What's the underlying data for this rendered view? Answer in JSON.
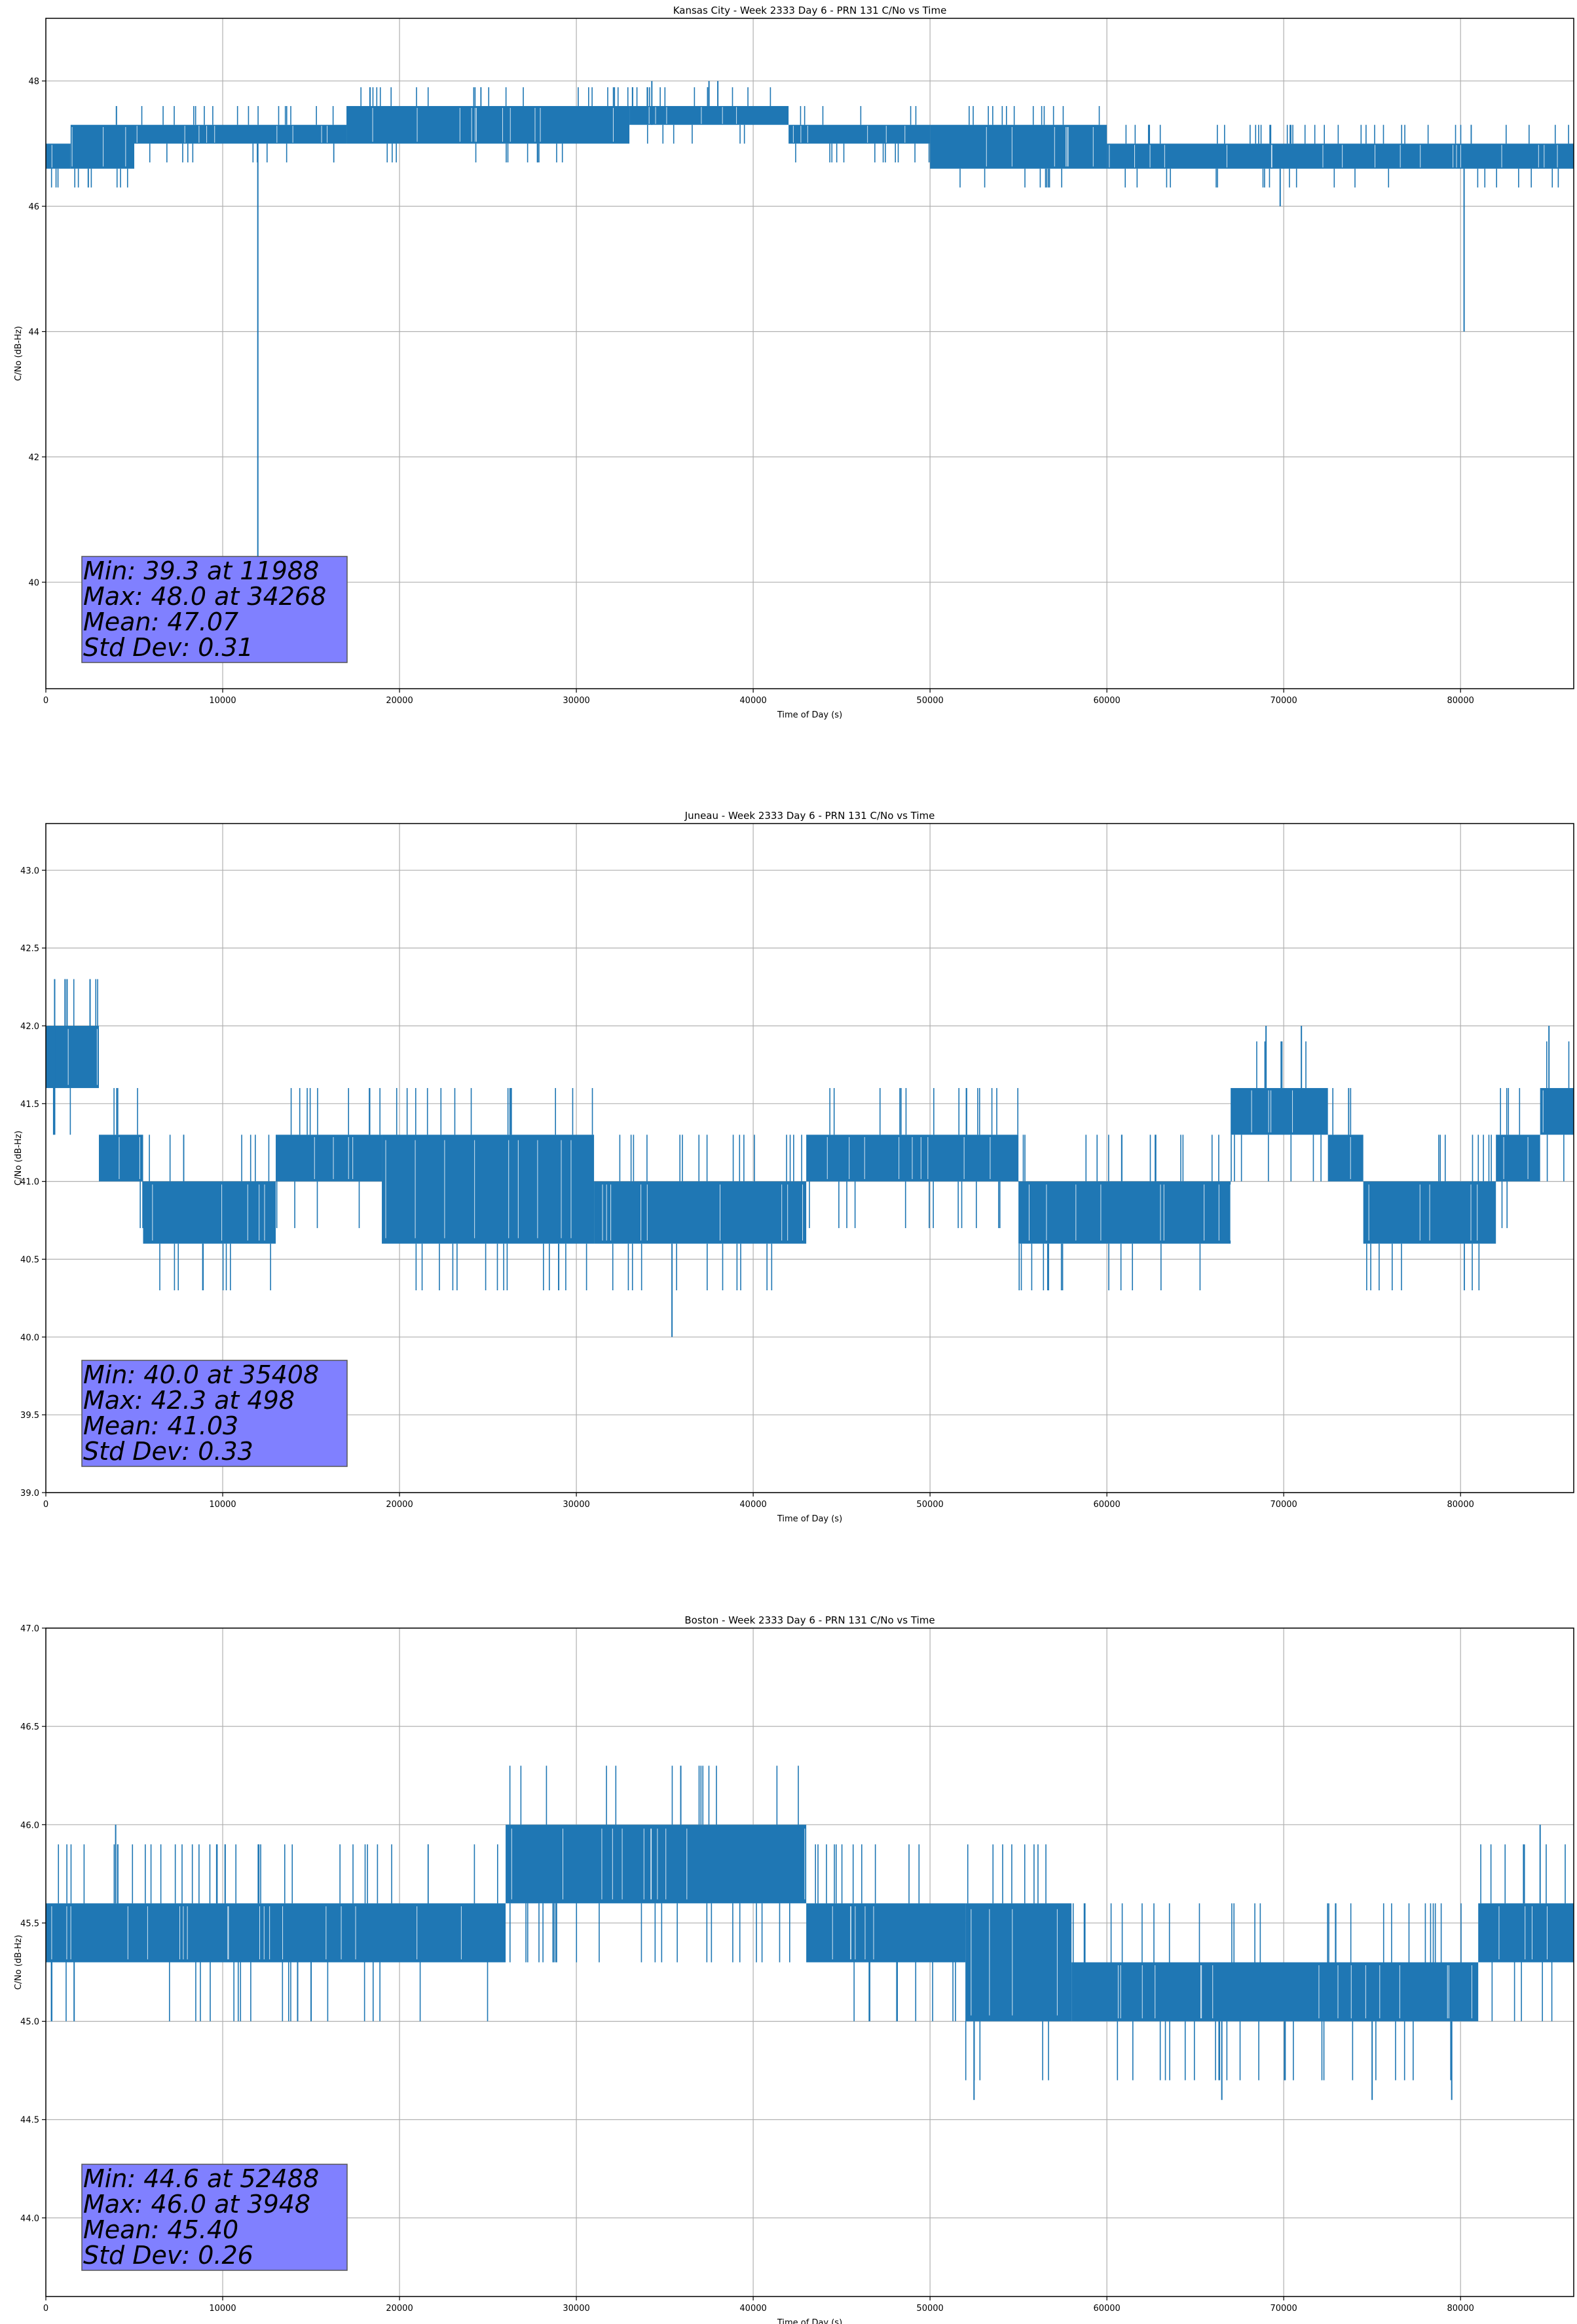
{
  "chart_data": [
    {
      "type": "line",
      "title": "Kansas City - Week 2333 Day 6 - PRN 131 C/No vs Time",
      "xlabel": "Time of Day (s)",
      "ylabel": "C/No (dB-Hz)",
      "xlim": [
        0,
        86400
      ],
      "ylim": [
        38.3,
        49.0
      ],
      "xticks": [
        0,
        10000,
        20000,
        30000,
        40000,
        50000,
        60000,
        70000,
        80000
      ],
      "yticks": [
        40,
        42,
        44,
        46,
        48
      ],
      "ytick_decimals": 0,
      "grid": true,
      "series_color": "#1f77b4",
      "band_segments": [
        {
          "x0": 0,
          "x1": 1400,
          "lo": 46.6,
          "hi": 47.0
        },
        {
          "x0": 1400,
          "x1": 5000,
          "lo": 46.6,
          "hi": 47.3
        },
        {
          "x0": 5000,
          "x1": 17000,
          "lo": 47.0,
          "hi": 47.3
        },
        {
          "x0": 17000,
          "x1": 33000,
          "lo": 47.0,
          "hi": 47.6
        },
        {
          "x0": 33000,
          "x1": 42000,
          "lo": 47.3,
          "hi": 47.6
        },
        {
          "x0": 42000,
          "x1": 50000,
          "lo": 47.0,
          "hi": 47.3
        },
        {
          "x0": 50000,
          "x1": 60000,
          "lo": 46.6,
          "hi": 47.3
        },
        {
          "x0": 60000,
          "x1": 86400,
          "lo": 46.6,
          "hi": 47.0
        }
      ],
      "spikes": [
        {
          "x": 11988,
          "lo": 39.3,
          "hi": 47.0
        },
        {
          "x": 34268,
          "lo": 47.3,
          "hi": 48.0
        },
        {
          "x": 37500,
          "lo": 47.6,
          "hi": 48.0
        },
        {
          "x": 38000,
          "lo": 47.6,
          "hi": 48.0
        },
        {
          "x": 80200,
          "lo": 44.0,
          "hi": 46.6
        },
        {
          "x": 69800,
          "lo": 46.0,
          "hi": 46.6
        },
        {
          "x": 2400,
          "lo": 46.3,
          "hi": 46.6
        }
      ],
      "stats": {
        "line1": "Min: 39.3 at 11988",
        "line2": "Max: 48.0 at 34268",
        "line3": "Mean: 47.07",
        "line4": "Std Dev: 0.31"
      }
    },
    {
      "type": "line",
      "title": "Juneau - Week 2333 Day 6 - PRN 131 C/No vs Time",
      "xlabel": "Time of Day (s)",
      "ylabel": "C/No (dB-Hz)",
      "xlim": [
        0,
        86400
      ],
      "ylim": [
        39.0,
        43.3
      ],
      "xticks": [
        0,
        10000,
        20000,
        30000,
        40000,
        50000,
        60000,
        70000,
        80000
      ],
      "yticks": [
        39.0,
        39.5,
        40.0,
        40.5,
        41.0,
        41.5,
        42.0,
        42.5,
        43.0
      ],
      "ytick_decimals": 1,
      "grid": true,
      "series_color": "#1f77b4",
      "band_segments": [
        {
          "x0": 0,
          "x1": 3000,
          "lo": 41.6,
          "hi": 42.0
        },
        {
          "x0": 3000,
          "x1": 5500,
          "lo": 41.0,
          "hi": 41.3
        },
        {
          "x0": 5500,
          "x1": 13000,
          "lo": 40.6,
          "hi": 41.0
        },
        {
          "x0": 13000,
          "x1": 19000,
          "lo": 41.0,
          "hi": 41.3
        },
        {
          "x0": 19000,
          "x1": 31000,
          "lo": 40.6,
          "hi": 41.3
        },
        {
          "x0": 31000,
          "x1": 43000,
          "lo": 40.6,
          "hi": 41.0
        },
        {
          "x0": 43000,
          "x1": 55000,
          "lo": 41.0,
          "hi": 41.3
        },
        {
          "x0": 55000,
          "x1": 67000,
          "lo": 40.6,
          "hi": 41.0
        },
        {
          "x0": 67000,
          "x1": 72500,
          "lo": 41.3,
          "hi": 41.6
        },
        {
          "x0": 72500,
          "x1": 74500,
          "lo": 41.0,
          "hi": 41.3
        },
        {
          "x0": 74500,
          "x1": 82000,
          "lo": 40.6,
          "hi": 41.0
        },
        {
          "x0": 82000,
          "x1": 84500,
          "lo": 41.0,
          "hi": 41.3
        },
        {
          "x0": 84500,
          "x1": 86400,
          "lo": 41.3,
          "hi": 41.6
        }
      ],
      "spikes": [
        {
          "x": 498,
          "lo": 41.3,
          "hi": 42.3
        },
        {
          "x": 1200,
          "lo": 42.0,
          "hi": 42.3
        },
        {
          "x": 2500,
          "lo": 42.0,
          "hi": 42.3
        },
        {
          "x": 35408,
          "lo": 40.0,
          "hi": 40.6
        },
        {
          "x": 29000,
          "lo": 40.3,
          "hi": 40.6
        },
        {
          "x": 69000,
          "lo": 41.6,
          "hi": 42.0
        },
        {
          "x": 71000,
          "lo": 41.6,
          "hi": 42.0
        },
        {
          "x": 85000,
          "lo": 41.6,
          "hi": 42.0
        }
      ],
      "stats": {
        "line1": "Min: 40.0 at 35408",
        "line2": "Max: 42.3 at 498",
        "line3": "Mean: 41.03",
        "line4": "Std Dev: 0.33"
      }
    },
    {
      "type": "line",
      "title": "Boston - Week 2333 Day 6 - PRN 131 C/No vs Time",
      "xlabel": "Time of Day (s)",
      "ylabel": "C/No (dB-Hz)",
      "xlim": [
        0,
        86400
      ],
      "ylim": [
        43.6,
        47.0
      ],
      "xticks": [
        0,
        10000,
        20000,
        30000,
        40000,
        50000,
        60000,
        70000,
        80000
      ],
      "yticks": [
        44.0,
        44.5,
        45.0,
        45.5,
        46.0,
        46.5,
        47.0
      ],
      "ytick_decimals": 1,
      "grid": true,
      "series_color": "#1f77b4",
      "band_segments": [
        {
          "x0": 0,
          "x1": 26000,
          "lo": 45.3,
          "hi": 45.6
        },
        {
          "x0": 26000,
          "x1": 43000,
          "lo": 45.6,
          "hi": 46.0
        },
        {
          "x0": 43000,
          "x1": 52000,
          "lo": 45.3,
          "hi": 45.6
        },
        {
          "x0": 52000,
          "x1": 58000,
          "lo": 45.0,
          "hi": 45.6
        },
        {
          "x0": 58000,
          "x1": 81000,
          "lo": 45.0,
          "hi": 45.3
        },
        {
          "x0": 81000,
          "x1": 86400,
          "lo": 45.3,
          "hi": 45.6
        }
      ],
      "spikes": [
        {
          "x": 52488,
          "lo": 44.6,
          "hi": 45.0
        },
        {
          "x": 3948,
          "lo": 45.6,
          "hi": 46.0
        },
        {
          "x": 1600,
          "lo": 45.0,
          "hi": 45.3
        },
        {
          "x": 15000,
          "lo": 45.0,
          "hi": 45.3
        },
        {
          "x": 66500,
          "lo": 44.6,
          "hi": 45.0
        },
        {
          "x": 75000,
          "lo": 44.6,
          "hi": 45.0
        },
        {
          "x": 79500,
          "lo": 44.6,
          "hi": 45.0
        },
        {
          "x": 84500,
          "lo": 45.6,
          "hi": 46.0
        }
      ],
      "stats": {
        "line1": "Min: 44.6 at 52488",
        "line2": "Max: 46.0 at 3948",
        "line3": "Mean: 45.40",
        "line4": "Std Dev: 0.26"
      }
    }
  ],
  "colors": {
    "series": "#1f77b4",
    "stats_box": "#8080ff",
    "grid": "#b0b0b0",
    "axes": "#000000"
  }
}
